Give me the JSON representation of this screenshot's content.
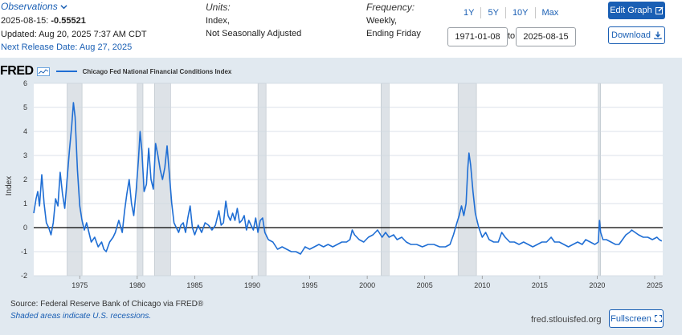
{
  "header": {
    "observations_label": "Observations",
    "obs_date": "2025-08-15:",
    "obs_value": "-0.55521",
    "updated": "Updated: Aug 20, 2025 7:37 AM CDT",
    "next_release": "Next Release Date: Aug 27, 2025",
    "units_label": "Units:",
    "units_line1": "Index,",
    "units_line2": "Not Seasonally Adjusted",
    "frequency_label": "Frequency:",
    "frequency_line1": "Weekly,",
    "frequency_line2": "Ending Friday",
    "range_buttons": [
      "1Y",
      "5Y",
      "10Y",
      "Max"
    ],
    "date_from": "1971-01-08",
    "to_label": "to",
    "date_to": "2025-08-15",
    "edit_label": "Edit Graph",
    "download_label": "Download"
  },
  "footer": {
    "source": "Source: Federal Reserve Bank of Chicago via FRED®",
    "recession_note": "Shaded areas indicate U.S. recessions.",
    "site": "fred.stlouisfed.org",
    "fullscreen_label": "Fullscreen"
  },
  "logo_text": "FRED",
  "colors": {
    "brand_blue": "#1a5fb4",
    "series_line": "#1f6ed4",
    "panel_bg": "#e1e9f0",
    "plot_bg": "#ffffff",
    "recession_fill": "#dde2e7",
    "gridline": "#cfd8e0"
  },
  "chart_data": {
    "type": "line",
    "title": "Chicago Fed National Financial Conditions Index",
    "ylabel": "Index",
    "xlabel": "",
    "xlim": [
      1971.0,
      2025.7
    ],
    "ylim": [
      -2,
      6
    ],
    "x_ticks": [
      1975,
      1980,
      1985,
      1990,
      1995,
      2000,
      2005,
      2010,
      2015,
      2020,
      2025
    ],
    "y_ticks": [
      -2,
      -1,
      0,
      1,
      2,
      3,
      4,
      5,
      6
    ],
    "grid": true,
    "zero_line": true,
    "legend_position": "top-left",
    "recessions": [
      [
        1973.9,
        1975.2
      ],
      [
        1980.0,
        1980.5
      ],
      [
        1981.5,
        1982.9
      ],
      [
        1990.5,
        1991.2
      ],
      [
        2001.2,
        2001.9
      ],
      [
        2007.9,
        2009.5
      ],
      [
        2020.1,
        2020.3
      ]
    ],
    "series": [
      {
        "name": "Chicago Fed National Financial Conditions Index",
        "color": "#1f6ed4",
        "points": [
          [
            1971.0,
            0.6
          ],
          [
            1971.2,
            1.2
          ],
          [
            1971.35,
            1.5
          ],
          [
            1971.5,
            0.9
          ],
          [
            1971.7,
            2.2
          ],
          [
            1971.9,
            1.0
          ],
          [
            1972.1,
            0.2
          ],
          [
            1972.3,
            0.0
          ],
          [
            1972.5,
            -0.3
          ],
          [
            1972.7,
            0.2
          ],
          [
            1972.9,
            1.2
          ],
          [
            1973.1,
            0.9
          ],
          [
            1973.3,
            2.3
          ],
          [
            1973.5,
            1.4
          ],
          [
            1973.7,
            0.8
          ],
          [
            1973.9,
            2.0
          ],
          [
            1974.1,
            3.2
          ],
          [
            1974.3,
            4.2
          ],
          [
            1974.45,
            5.2
          ],
          [
            1974.6,
            4.6
          ],
          [
            1974.8,
            2.4
          ],
          [
            1975.0,
            0.9
          ],
          [
            1975.2,
            0.3
          ],
          [
            1975.4,
            -0.1
          ],
          [
            1975.6,
            0.2
          ],
          [
            1975.8,
            -0.2
          ],
          [
            1976.0,
            -0.6
          ],
          [
            1976.3,
            -0.4
          ],
          [
            1976.6,
            -0.8
          ],
          [
            1976.9,
            -0.6
          ],
          [
            1977.1,
            -0.9
          ],
          [
            1977.3,
            -1.0
          ],
          [
            1977.6,
            -0.6
          ],
          [
            1977.9,
            -0.4
          ],
          [
            1978.1,
            -0.2
          ],
          [
            1978.4,
            0.3
          ],
          [
            1978.7,
            -0.2
          ],
          [
            1978.9,
            0.7
          ],
          [
            1979.1,
            1.4
          ],
          [
            1979.3,
            2.0
          ],
          [
            1979.5,
            1.0
          ],
          [
            1979.7,
            0.5
          ],
          [
            1979.9,
            1.5
          ],
          [
            1980.1,
            2.8
          ],
          [
            1980.25,
            4.0
          ],
          [
            1980.4,
            3.2
          ],
          [
            1980.6,
            1.5
          ],
          [
            1980.8,
            1.8
          ],
          [
            1981.0,
            3.3
          ],
          [
            1981.2,
            2.0
          ],
          [
            1981.4,
            1.6
          ],
          [
            1981.6,
            3.5
          ],
          [
            1981.8,
            3.0
          ],
          [
            1982.0,
            2.4
          ],
          [
            1982.2,
            2.0
          ],
          [
            1982.4,
            2.5
          ],
          [
            1982.6,
            3.4
          ],
          [
            1982.8,
            2.2
          ],
          [
            1983.0,
            1.0
          ],
          [
            1983.2,
            0.2
          ],
          [
            1983.4,
            0.0
          ],
          [
            1983.6,
            -0.2
          ],
          [
            1983.8,
            0.1
          ],
          [
            1984.0,
            0.2
          ],
          [
            1984.2,
            -0.2
          ],
          [
            1984.4,
            0.4
          ],
          [
            1984.6,
            0.9
          ],
          [
            1984.8,
            0.0
          ],
          [
            1985.0,
            -0.3
          ],
          [
            1985.3,
            0.1
          ],
          [
            1985.6,
            -0.2
          ],
          [
            1985.9,
            0.2
          ],
          [
            1986.2,
            0.1
          ],
          [
            1986.5,
            -0.1
          ],
          [
            1986.8,
            0.1
          ],
          [
            1987.1,
            0.7
          ],
          [
            1987.3,
            0.1
          ],
          [
            1987.5,
            0.2
          ],
          [
            1987.7,
            1.1
          ],
          [
            1987.9,
            0.5
          ],
          [
            1988.1,
            0.3
          ],
          [
            1988.3,
            0.6
          ],
          [
            1988.5,
            0.3
          ],
          [
            1988.7,
            0.8
          ],
          [
            1988.9,
            0.2
          ],
          [
            1989.1,
            0.3
          ],
          [
            1989.3,
            0.5
          ],
          [
            1989.5,
            -0.1
          ],
          [
            1989.7,
            0.3
          ],
          [
            1989.9,
            0.1
          ],
          [
            1990.1,
            -0.1
          ],
          [
            1990.3,
            0.4
          ],
          [
            1990.5,
            -0.2
          ],
          [
            1990.7,
            0.3
          ],
          [
            1990.9,
            0.4
          ],
          [
            1991.1,
            -0.2
          ],
          [
            1991.4,
            -0.5
          ],
          [
            1991.8,
            -0.6
          ],
          [
            1992.2,
            -0.9
          ],
          [
            1992.6,
            -0.8
          ],
          [
            1993.0,
            -0.9
          ],
          [
            1993.4,
            -1.0
          ],
          [
            1993.8,
            -1.0
          ],
          [
            1994.2,
            -1.1
          ],
          [
            1994.6,
            -0.8
          ],
          [
            1995.0,
            -0.9
          ],
          [
            1995.4,
            -0.8
          ],
          [
            1995.8,
            -0.7
          ],
          [
            1996.2,
            -0.8
          ],
          [
            1996.6,
            -0.7
          ],
          [
            1997.0,
            -0.8
          ],
          [
            1997.4,
            -0.7
          ],
          [
            1997.8,
            -0.6
          ],
          [
            1998.2,
            -0.6
          ],
          [
            1998.5,
            -0.5
          ],
          [
            1998.7,
            -0.1
          ],
          [
            1998.9,
            -0.3
          ],
          [
            1999.3,
            -0.5
          ],
          [
            1999.7,
            -0.6
          ],
          [
            2000.1,
            -0.4
          ],
          [
            2000.5,
            -0.3
          ],
          [
            2000.9,
            -0.1
          ],
          [
            2001.3,
            -0.4
          ],
          [
            2001.6,
            -0.2
          ],
          [
            2001.9,
            -0.4
          ],
          [
            2002.3,
            -0.3
          ],
          [
            2002.6,
            -0.5
          ],
          [
            2003.0,
            -0.4
          ],
          [
            2003.4,
            -0.6
          ],
          [
            2003.8,
            -0.7
          ],
          [
            2004.3,
            -0.7
          ],
          [
            2004.8,
            -0.8
          ],
          [
            2005.3,
            -0.7
          ],
          [
            2005.8,
            -0.7
          ],
          [
            2006.3,
            -0.8
          ],
          [
            2006.8,
            -0.8
          ],
          [
            2007.2,
            -0.7
          ],
          [
            2007.5,
            -0.3
          ],
          [
            2007.8,
            0.2
          ],
          [
            2008.0,
            0.5
          ],
          [
            2008.2,
            0.9
          ],
          [
            2008.4,
            0.5
          ],
          [
            2008.6,
            1.0
          ],
          [
            2008.75,
            2.5
          ],
          [
            2008.85,
            3.1
          ],
          [
            2009.0,
            2.6
          ],
          [
            2009.2,
            1.5
          ],
          [
            2009.4,
            0.6
          ],
          [
            2009.7,
            0.0
          ],
          [
            2010.0,
            -0.4
          ],
          [
            2010.3,
            -0.2
          ],
          [
            2010.6,
            -0.5
          ],
          [
            2011.0,
            -0.6
          ],
          [
            2011.4,
            -0.6
          ],
          [
            2011.7,
            -0.2
          ],
          [
            2012.0,
            -0.4
          ],
          [
            2012.4,
            -0.6
          ],
          [
            2012.8,
            -0.6
          ],
          [
            2013.2,
            -0.7
          ],
          [
            2013.6,
            -0.6
          ],
          [
            2014.0,
            -0.7
          ],
          [
            2014.4,
            -0.8
          ],
          [
            2014.8,
            -0.7
          ],
          [
            2015.2,
            -0.6
          ],
          [
            2015.6,
            -0.6
          ],
          [
            2016.0,
            -0.4
          ],
          [
            2016.3,
            -0.6
          ],
          [
            2016.7,
            -0.6
          ],
          [
            2017.1,
            -0.7
          ],
          [
            2017.5,
            -0.8
          ],
          [
            2017.9,
            -0.7
          ],
          [
            2018.3,
            -0.6
          ],
          [
            2018.7,
            -0.7
          ],
          [
            2019.0,
            -0.5
          ],
          [
            2019.4,
            -0.6
          ],
          [
            2019.8,
            -0.7
          ],
          [
            2020.1,
            -0.6
          ],
          [
            2020.2,
            0.3
          ],
          [
            2020.3,
            -0.2
          ],
          [
            2020.5,
            -0.5
          ],
          [
            2020.8,
            -0.5
          ],
          [
            2021.2,
            -0.6
          ],
          [
            2021.6,
            -0.7
          ],
          [
            2021.9,
            -0.7
          ],
          [
            2022.2,
            -0.5
          ],
          [
            2022.5,
            -0.3
          ],
          [
            2022.8,
            -0.2
          ],
          [
            2023.0,
            -0.1
          ],
          [
            2023.3,
            -0.2
          ],
          [
            2023.6,
            -0.3
          ],
          [
            2024.0,
            -0.4
          ],
          [
            2024.4,
            -0.4
          ],
          [
            2024.8,
            -0.5
          ],
          [
            2025.2,
            -0.4
          ],
          [
            2025.4,
            -0.5
          ],
          [
            2025.62,
            -0.56
          ]
        ]
      }
    ]
  }
}
